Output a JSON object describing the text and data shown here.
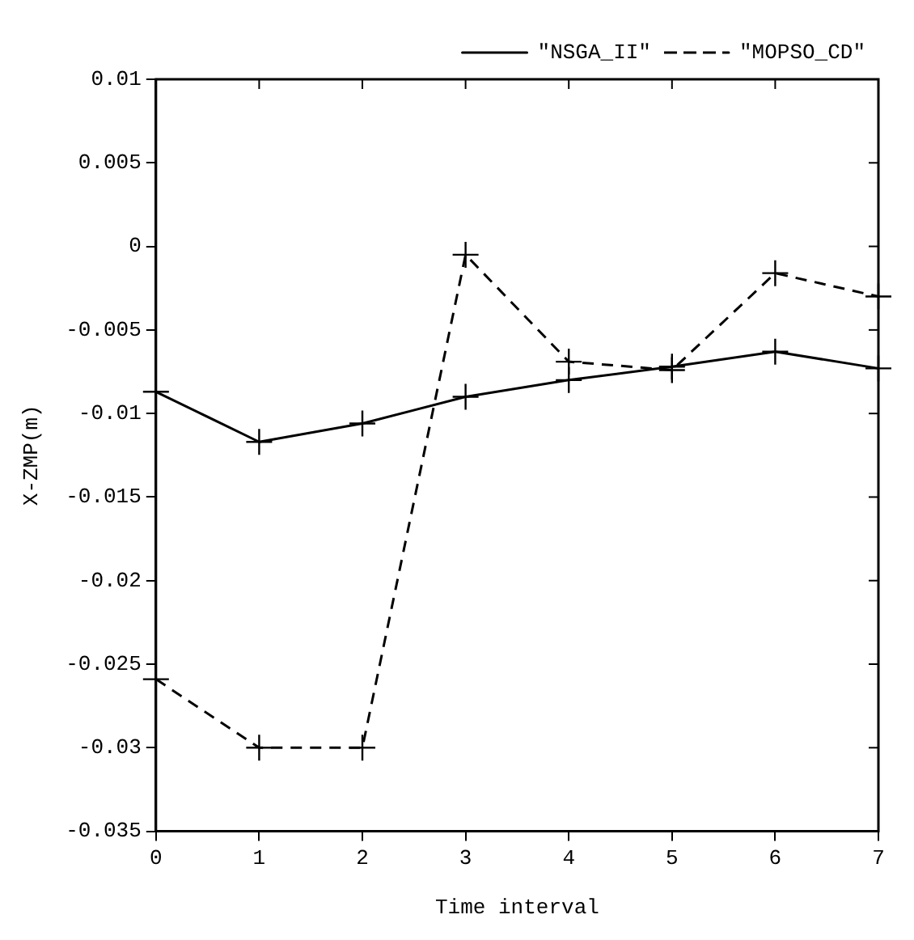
{
  "chart_data": {
    "type": "line",
    "xlabel": "Time interval",
    "ylabel": "X-ZMP(m)",
    "x": [
      0,
      1,
      2,
      3,
      4,
      5,
      6,
      7
    ],
    "series": [
      {
        "name": "\"NSGA_II\"",
        "color": "#000000",
        "values": [
          -0.0087,
          -0.0117,
          -0.0106,
          -0.009,
          -0.008,
          -0.0072,
          -0.0063,
          -0.0073
        ],
        "line_style": "solid",
        "marker": "cross"
      },
      {
        "name": "\"MOPSO_CD\"",
        "color": "#000000",
        "values": [
          -0.0259,
          -0.03,
          -0.03,
          -0.0005,
          -0.0069,
          -0.0074,
          -0.0016,
          -0.003
        ],
        "line_style": "dashed",
        "marker": "cross"
      }
    ],
    "xlim": [
      0,
      7
    ],
    "xticks": [
      0,
      1,
      2,
      3,
      4,
      5,
      6,
      7
    ],
    "ylim": [
      -0.035,
      0.01
    ],
    "yticks": [
      -0.035,
      -0.03,
      -0.025,
      -0.02,
      -0.015,
      -0.01,
      -0.005,
      0,
      0.005,
      0.01
    ],
    "grid": false,
    "legend": "top right"
  }
}
